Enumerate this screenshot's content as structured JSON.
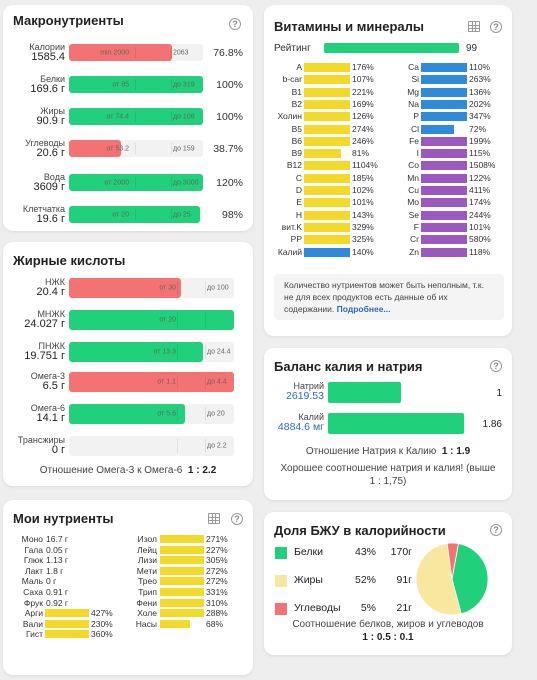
{
  "colors": {
    "green": "#20d07a",
    "red": "#f47272",
    "yellow": "#f3d92a",
    "blue": "#2f8bd9",
    "purple": "#9b59c0"
  },
  "macro": {
    "title": "Макронутриенты",
    "rows": [
      {
        "name": "Калории",
        "value": "1585.4",
        "from": "min 2000",
        "to": "2063",
        "pct": "76.8%",
        "level": 0.768,
        "color": "red"
      },
      {
        "name": "Белки",
        "value": "169.6 г",
        "from": "от 85",
        "to": "до 319",
        "pct": "100%",
        "level": 1.0,
        "color": "green"
      },
      {
        "name": "Жиры",
        "value": "90.9 г",
        "from": "от 74.4",
        "to": "до 106",
        "pct": "100%",
        "level": 1.0,
        "color": "green"
      },
      {
        "name": "Углеводы",
        "value": "20.6 г",
        "from": "от 53.2",
        "to": "до 159",
        "pct": "38.7%",
        "level": 0.387,
        "color": "red"
      },
      {
        "name": "Вода",
        "value": "3609 г",
        "from": "от 2000",
        "to": "до 3000",
        "pct": "120%",
        "level": 1.0,
        "color": "green"
      },
      {
        "name": "Клетчатка",
        "value": "19.6 г",
        "from": "от 20",
        "to": "до 25",
        "pct": "98%",
        "level": 0.98,
        "color": "green"
      }
    ]
  },
  "fatty": {
    "title": "Жирные кислоты",
    "rows": [
      {
        "name": "НЖК",
        "value": "20.4 г",
        "from": "от 30",
        "to": "до 100",
        "level": 0.68,
        "color": "red"
      },
      {
        "name": "МНЖК",
        "value": "24.027 г",
        "from": "от 20",
        "to": "",
        "level": 1.0,
        "color": "green"
      },
      {
        "name": "ПНЖК",
        "value": "19.751 г",
        "from": "от 13.3",
        "to": "до 24.4",
        "level": 0.81,
        "color": "green"
      },
      {
        "name": "Омега-3",
        "value": "6.5 г",
        "from": "от 1.1",
        "to": "до 4.4",
        "level": 1.0,
        "color": "red"
      },
      {
        "name": "Омега-6",
        "value": "14.1 г",
        "from": "от 5.6",
        "to": "до 20",
        "level": 0.7,
        "color": "green"
      },
      {
        "name": "Трансжиры",
        "value": "0 г",
        "from": "",
        "to": "до 2.2",
        "level": 0,
        "color": "green"
      }
    ],
    "ratio_label": "Отношение Омега-3 к Омега-6",
    "ratio_value": "1 : 2.2"
  },
  "my": {
    "title": "Мои нутриенты",
    "left": [
      {
        "name": "Моно",
        "value": "16.7 г",
        "level": 0
      },
      {
        "name": "Гала",
        "value": "0.05 г",
        "level": 0
      },
      {
        "name": "Глюк",
        "value": "1.13 г",
        "level": 0
      },
      {
        "name": "Лакт",
        "value": "1.8 г",
        "level": 0
      },
      {
        "name": "Маль",
        "value": "0 г",
        "level": 0
      },
      {
        "name": "Саха",
        "value": "0.91 г",
        "level": 0
      },
      {
        "name": "Фрук",
        "value": "0.92 г",
        "level": 0
      },
      {
        "name": "Арги",
        "value": "427%",
        "level": 1
      },
      {
        "name": "Вали",
        "value": "230%",
        "level": 1
      },
      {
        "name": "Гист",
        "value": "360%",
        "level": 1
      }
    ],
    "right": [
      {
        "name": "Изол",
        "value": "271%",
        "level": 1
      },
      {
        "name": "Лейц",
        "value": "227%",
        "level": 1
      },
      {
        "name": "Лизи",
        "value": "305%",
        "level": 1
      },
      {
        "name": "Мети",
        "value": "272%",
        "level": 1
      },
      {
        "name": "Трео",
        "value": "272%",
        "level": 1
      },
      {
        "name": "Трип",
        "value": "331%",
        "level": 1
      },
      {
        "name": "Фени",
        "value": "310%",
        "level": 1
      },
      {
        "name": "Холе",
        "value": "288%",
        "level": 1
      },
      {
        "name": "Насы",
        "value": "68%",
        "level": 0.68
      }
    ]
  },
  "vit": {
    "title": "Витамины и минералы",
    "rating_label": "Рейтинг",
    "rating_value": "99",
    "rating_level": 0.99,
    "left": [
      {
        "name": "A",
        "value": "176%",
        "color": "yellow",
        "level": 1
      },
      {
        "name": "b-car",
        "value": "107%",
        "color": "yellow",
        "level": 1
      },
      {
        "name": "B1",
        "value": "221%",
        "color": "yellow",
        "level": 1
      },
      {
        "name": "B2",
        "value": "169%",
        "color": "yellow",
        "level": 1
      },
      {
        "name": "Холин",
        "value": "126%",
        "color": "yellow",
        "level": 1
      },
      {
        "name": "B5",
        "value": "274%",
        "color": "yellow",
        "level": 1
      },
      {
        "name": "B6",
        "value": "246%",
        "color": "yellow",
        "level": 1
      },
      {
        "name": "B9",
        "value": "81%",
        "color": "yellow",
        "level": 0.81
      },
      {
        "name": "B12",
        "value": "1104%",
        "color": "yellow",
        "level": 1
      },
      {
        "name": "C",
        "value": "185%",
        "color": "yellow",
        "level": 1
      },
      {
        "name": "D",
        "value": "102%",
        "color": "yellow",
        "level": 1
      },
      {
        "name": "E",
        "value": "101%",
        "color": "yellow",
        "level": 1
      },
      {
        "name": "H",
        "value": "143%",
        "color": "yellow",
        "level": 1
      },
      {
        "name": "вит.K",
        "value": "329%",
        "color": "yellow",
        "level": 1
      },
      {
        "name": "PP",
        "value": "325%",
        "color": "yellow",
        "level": 1
      },
      {
        "name": "Калий",
        "value": "140%",
        "color": "blue",
        "level": 1
      }
    ],
    "right": [
      {
        "name": "Ca",
        "value": "110%",
        "color": "blue",
        "level": 1
      },
      {
        "name": "Si",
        "value": "263%",
        "color": "blue",
        "level": 1
      },
      {
        "name": "Mg",
        "value": "136%",
        "color": "blue",
        "level": 1
      },
      {
        "name": "Na",
        "value": "202%",
        "color": "blue",
        "level": 1
      },
      {
        "name": "P",
        "value": "347%",
        "color": "blue",
        "level": 1
      },
      {
        "name": "Cl",
        "value": "72%",
        "color": "blue",
        "level": 0.72
      },
      {
        "name": "Fe",
        "value": "199%",
        "color": "purple",
        "level": 1
      },
      {
        "name": "I",
        "value": "115%",
        "color": "purple",
        "level": 1
      },
      {
        "name": "Co",
        "value": "1508%",
        "color": "purple",
        "level": 1
      },
      {
        "name": "Mn",
        "value": "122%",
        "color": "purple",
        "level": 1
      },
      {
        "name": "Cu",
        "value": "411%",
        "color": "purple",
        "level": 1
      },
      {
        "name": "Mo",
        "value": "174%",
        "color": "purple",
        "level": 1
      },
      {
        "name": "Se",
        "value": "244%",
        "color": "purple",
        "level": 1
      },
      {
        "name": "F",
        "value": "101%",
        "color": "purple",
        "level": 1
      },
      {
        "name": "Cr",
        "value": "580%",
        "color": "purple",
        "level": 1
      },
      {
        "name": "Zn",
        "value": "118%",
        "color": "purple",
        "level": 1
      }
    ],
    "note": "Количество нутриентов может быть неполным, т.к. не для всех продуктов есть данные об их содержании.",
    "note_link": "Подробнее..."
  },
  "balance": {
    "title": "Баланс калия и натрия",
    "rows": [
      {
        "name": "Натрий",
        "value": "2619.53",
        "ratio": "1",
        "level": 0.54
      },
      {
        "name": "Калий",
        "value": "4884.6 мг",
        "ratio": "1.86",
        "level": 1.0
      }
    ],
    "ratio_label": "Отношение Натрия к Калию",
    "ratio_value": "1 : 1.9",
    "verdict": "Хорошее соотношение натрия и калия! (выше 1 : 1,75)"
  },
  "bju": {
    "title": "Доля БЖУ в калорийности",
    "rows": [
      {
        "name": "Белки",
        "pct": "43%",
        "grams": "170г",
        "color": "green",
        "share": 43
      },
      {
        "name": "Жиры",
        "pct": "52%",
        "grams": "91г",
        "color": "#f9e79f",
        "share": 52
      },
      {
        "name": "Углеводы",
        "pct": "5%",
        "grams": "21г",
        "color": "red",
        "share": 5
      }
    ],
    "ratio_label": "Соотношение белков, жиров и углеводов",
    "ratio_value": "1 : 0.5 : 0.1"
  }
}
